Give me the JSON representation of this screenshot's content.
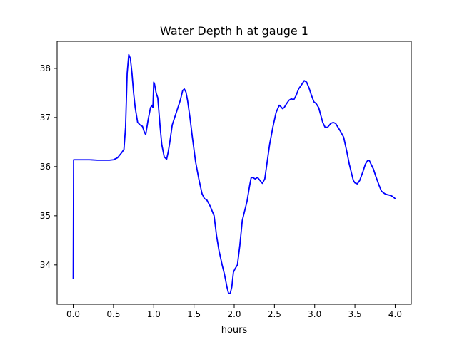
{
  "chart_data": {
    "type": "line",
    "title": "Water Depth h at gauge 1",
    "xlabel": "hours",
    "ylabel": "",
    "xlim": [
      -0.2,
      4.2
    ],
    "ylim": [
      33.2,
      38.55
    ],
    "x_ticks": [
      0.0,
      0.5,
      1.0,
      1.5,
      2.0,
      2.5,
      3.0,
      3.5,
      4.0
    ],
    "x_tick_labels": [
      "0.0",
      "0.5",
      "1.0",
      "1.5",
      "2.0",
      "2.5",
      "3.0",
      "3.5",
      "4.0"
    ],
    "y_ticks": [
      34,
      35,
      36,
      37,
      38
    ],
    "y_tick_labels": [
      "34",
      "35",
      "36",
      "37",
      "38"
    ],
    "grid": false,
    "series": [
      {
        "color": "#0000ff",
        "x": [
          0.0,
          0.005,
          0.02,
          0.1,
          0.2,
          0.3,
          0.4,
          0.45,
          0.5,
          0.55,
          0.6,
          0.63,
          0.65,
          0.67,
          0.69,
          0.71,
          0.73,
          0.75,
          0.77,
          0.8,
          0.83,
          0.86,
          0.88,
          0.9,
          0.93,
          0.96,
          0.98,
          0.99,
          1.0,
          1.01,
          1.03,
          1.05,
          1.08,
          1.1,
          1.13,
          1.16,
          1.18,
          1.2,
          1.23,
          1.26,
          1.3,
          1.33,
          1.36,
          1.38,
          1.4,
          1.42,
          1.45,
          1.48,
          1.52,
          1.56,
          1.6,
          1.63,
          1.66,
          1.7,
          1.72,
          1.75,
          1.78,
          1.81,
          1.85,
          1.88,
          1.91,
          1.93,
          1.95,
          1.97,
          1.99,
          2.01,
          2.04,
          2.07,
          2.1,
          2.13,
          2.16,
          2.19,
          2.21,
          2.23,
          2.26,
          2.29,
          2.32,
          2.35,
          2.38,
          2.41,
          2.44,
          2.48,
          2.52,
          2.56,
          2.58,
          2.6,
          2.62,
          2.65,
          2.68,
          2.71,
          2.74,
          2.77,
          2.8,
          2.83,
          2.85,
          2.87,
          2.9,
          2.93,
          2.96,
          2.99,
          3.02,
          3.05,
          3.08,
          3.1,
          3.13,
          3.16,
          3.2,
          3.23,
          3.26,
          3.29,
          3.32,
          3.36,
          3.4,
          3.43,
          3.46,
          3.48,
          3.5,
          3.53,
          3.56,
          3.6,
          3.63,
          3.66,
          3.68,
          3.7,
          3.73,
          3.76,
          3.8,
          3.83,
          3.87,
          3.9,
          3.93,
          3.96,
          4.0
        ],
        "y": [
          33.72,
          36.14,
          36.14,
          36.14,
          36.14,
          36.13,
          36.13,
          36.13,
          36.14,
          36.18,
          36.28,
          36.35,
          36.8,
          37.9,
          38.28,
          38.2,
          37.9,
          37.5,
          37.2,
          36.9,
          36.85,
          36.82,
          36.72,
          36.65,
          36.95,
          37.2,
          37.25,
          37.2,
          37.72,
          37.68,
          37.5,
          37.4,
          36.8,
          36.45,
          36.2,
          36.15,
          36.3,
          36.5,
          36.85,
          37.0,
          37.2,
          37.35,
          37.55,
          37.58,
          37.52,
          37.35,
          37.0,
          36.6,
          36.1,
          35.75,
          35.45,
          35.35,
          35.32,
          35.2,
          35.12,
          35.0,
          34.6,
          34.3,
          34.0,
          33.8,
          33.55,
          33.42,
          33.42,
          33.55,
          33.85,
          33.92,
          34.0,
          34.4,
          34.9,
          35.1,
          35.3,
          35.6,
          35.77,
          35.78,
          35.75,
          35.78,
          35.72,
          35.66,
          35.75,
          36.1,
          36.45,
          36.8,
          37.1,
          37.25,
          37.22,
          37.18,
          37.2,
          37.28,
          37.35,
          37.38,
          37.36,
          37.45,
          37.58,
          37.65,
          37.7,
          37.75,
          37.72,
          37.6,
          37.45,
          37.32,
          37.28,
          37.2,
          37.02,
          36.9,
          36.8,
          36.8,
          36.88,
          36.9,
          36.88,
          36.8,
          36.72,
          36.6,
          36.3,
          36.05,
          35.85,
          35.72,
          35.67,
          35.65,
          35.72,
          35.9,
          36.05,
          36.13,
          36.12,
          36.05,
          35.95,
          35.8,
          35.62,
          35.5,
          35.45,
          35.43,
          35.42,
          35.4,
          35.35
        ]
      }
    ]
  }
}
